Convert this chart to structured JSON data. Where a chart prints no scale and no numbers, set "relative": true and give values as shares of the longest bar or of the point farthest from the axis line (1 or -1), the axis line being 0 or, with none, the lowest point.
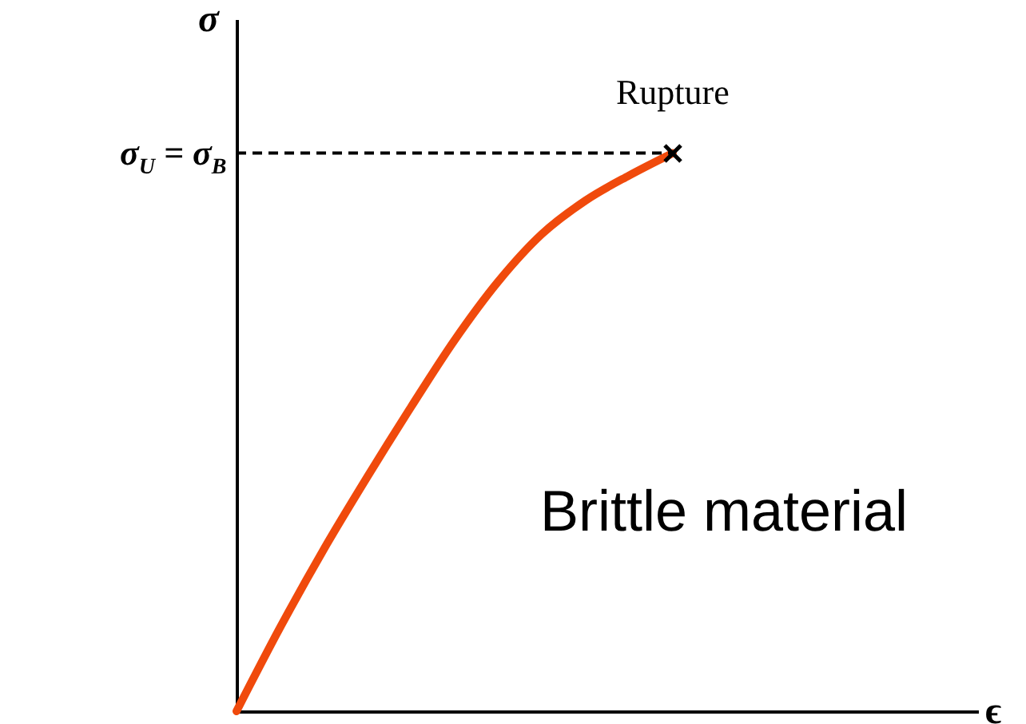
{
  "chart_data": {
    "type": "line",
    "relative": true,
    "xlabel": "ϵ",
    "ylabel": "σ",
    "categories": [
      null,
      null,
      null,
      null,
      null,
      null,
      null,
      null,
      null,
      null,
      null,
      null,
      null,
      null,
      null,
      null,
      null,
      null
    ],
    "series": [
      {
        "color": "#f04a0c",
        "values": [
          0,
          0.15,
          0.29,
          0.42,
          0.545,
          0.665,
          0.77,
          0.855,
          0.915,
          0.96,
          1,
          null,
          null,
          null,
          null,
          null,
          null,
          null
        ]
      }
    ],
    "ref_lines": [
      {
        "axis": "y",
        "value": 1,
        "label": "σ$_{U}$ = σ$_{B}$",
        "line_style": "dashed",
        "color": "#000000"
      }
    ],
    "annotations": [
      "Rupture",
      "Brittle material"
    ]
  }
}
